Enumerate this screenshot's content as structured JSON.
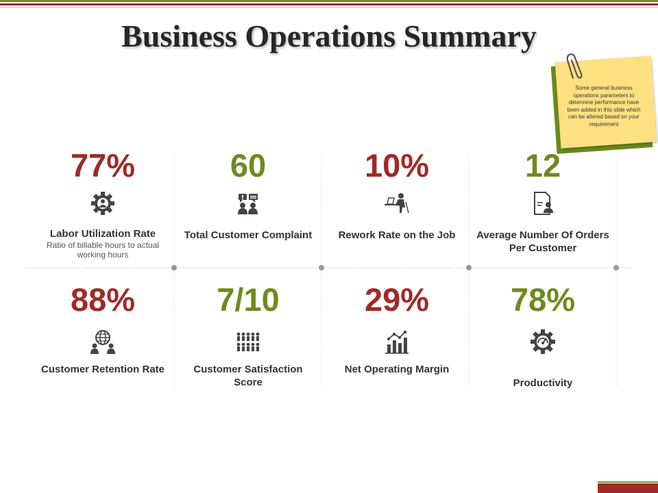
{
  "title": "Business Operations Summary",
  "note": {
    "text": "Some general business operations parameters to determine performance have been added in this slide which can be altered based on your requirement"
  },
  "colors": {
    "red": "#a02a26",
    "green": "#6f8a1f",
    "accent_band": "#7b8b2b"
  },
  "kpis": [
    {
      "value": "77%",
      "color": "red",
      "icon": "gear-person-icon",
      "label": "Labor Utilization Rate",
      "sublabel": "Ratio of billable hours to actual working hours"
    },
    {
      "value": "60",
      "color": "green",
      "icon": "complaint-chat-icon",
      "label": "Total Customer Complaint",
      "sublabel": ""
    },
    {
      "value": "10%",
      "color": "red",
      "icon": "person-at-desk-icon",
      "label": "Rework Rate on the Job",
      "sublabel": ""
    },
    {
      "value": "12",
      "color": "green",
      "icon": "order-document-icon",
      "label": "Average Number Of Orders Per Customer",
      "sublabel": ""
    },
    {
      "value": "88%",
      "color": "red",
      "icon": "globe-people-icon",
      "label": "Customer Retention Rate",
      "sublabel": ""
    },
    {
      "value": "7/10",
      "color": "green",
      "icon": "people-group-icon",
      "label": "Customer Satisfaction Score",
      "sublabel": ""
    },
    {
      "value": "29%",
      "color": "red",
      "icon": "bar-chart-icon",
      "label": "Net Operating Margin",
      "sublabel": ""
    },
    {
      "value": "78%",
      "color": "green",
      "icon": "speedometer-gear-icon",
      "label": "Productivity",
      "sublabel": ""
    }
  ]
}
